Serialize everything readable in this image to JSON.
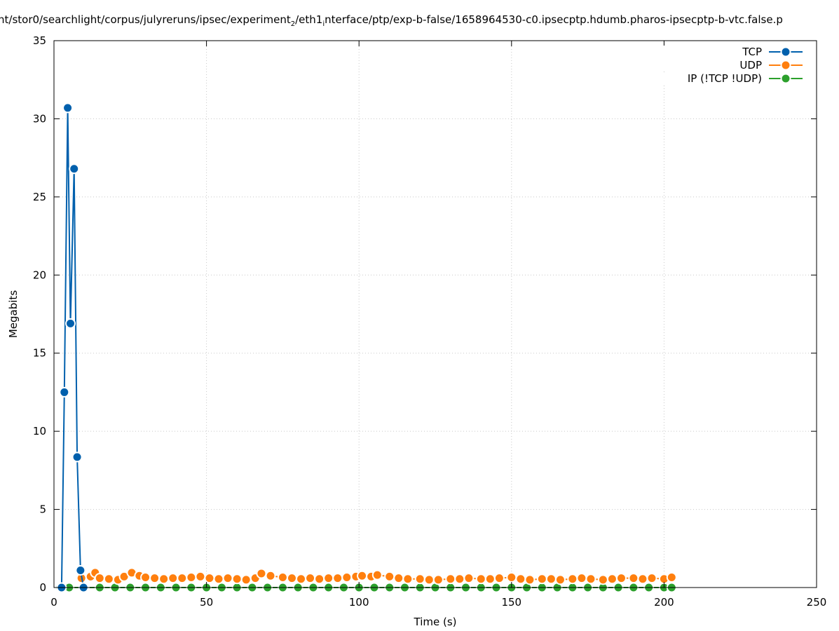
{
  "chart_data": {
    "type": "line",
    "title_parts": [
      "nt/stor0/searchlight/corpus/julyreruns/ipsec/experiment",
      "2",
      "/eth1",
      "i",
      "nterface/ptp/exp-b-false/1658964530-c0.ipsecptp.hdumb.pharos-ipsecptp-b-vtc.false.p"
    ],
    "xlabel": "Time (s)",
    "ylabel": "Megabits",
    "xlim": [
      0,
      250
    ],
    "ylim": [
      0,
      35
    ],
    "xticks": [
      "0",
      "50",
      "100",
      "150",
      "200",
      "250"
    ],
    "yticks": [
      "0",
      "5",
      "10",
      "15",
      "20",
      "25",
      "30",
      "35"
    ],
    "grid": true,
    "legend_position": "top-right",
    "series": [
      {
        "name": "TCP",
        "color": "#0060ad",
        "x": [
          2.5,
          3.4,
          4.5,
          5.4,
          6.6,
          7.6,
          8.7,
          9.7
        ],
        "y": [
          0,
          12.5,
          30.7,
          16.9,
          26.8,
          8.35,
          1.1,
          0
        ]
      },
      {
        "name": "UDP",
        "color": "#ff7f0e",
        "x": [
          9,
          12,
          13.5,
          15,
          18,
          21,
          23,
          25.5,
          28,
          30,
          33,
          36,
          39,
          42,
          45,
          48,
          51,
          54,
          57,
          60,
          63,
          66,
          68,
          71,
          75,
          78,
          81,
          84,
          87,
          90,
          93,
          96,
          99,
          101,
          104,
          106,
          110,
          113,
          116,
          120,
          123,
          126,
          130,
          133,
          136,
          140,
          143,
          146,
          150,
          153,
          156,
          160,
          163,
          166,
          170,
          173,
          176,
          180,
          183,
          186,
          190,
          193,
          196,
          200,
          202.5
        ],
        "y": [
          0.6,
          0.7,
          0.95,
          0.6,
          0.55,
          0.5,
          0.7,
          0.95,
          0.75,
          0.65,
          0.6,
          0.55,
          0.6,
          0.6,
          0.65,
          0.7,
          0.6,
          0.55,
          0.6,
          0.55,
          0.5,
          0.6,
          0.9,
          0.75,
          0.65,
          0.6,
          0.55,
          0.6,
          0.55,
          0.6,
          0.6,
          0.65,
          0.7,
          0.75,
          0.7,
          0.8,
          0.7,
          0.6,
          0.55,
          0.55,
          0.5,
          0.5,
          0.55,
          0.55,
          0.6,
          0.55,
          0.55,
          0.6,
          0.65,
          0.55,
          0.5,
          0.55,
          0.55,
          0.5,
          0.55,
          0.6,
          0.55,
          0.5,
          0.55,
          0.6,
          0.6,
          0.55,
          0.6,
          0.55,
          0.65
        ]
      },
      {
        "name": "IP (!TCP  !UDP)",
        "color": "#2ca02c",
        "x": [
          2,
          5,
          10,
          15,
          20,
          25,
          30,
          35,
          40,
          45,
          50,
          55,
          60,
          65,
          70,
          75,
          80,
          85,
          90,
          95,
          100,
          105,
          110,
          115,
          120,
          125,
          130,
          135,
          140,
          145,
          150,
          155,
          160,
          165,
          170,
          175,
          180,
          185,
          190,
          195,
          200,
          202.5
        ],
        "y": [
          0,
          0,
          0,
          0,
          0,
          0,
          0,
          0,
          0,
          0,
          0,
          0,
          0,
          0,
          0,
          0,
          0,
          0,
          0,
          0,
          0,
          0,
          0,
          0,
          0,
          0,
          0,
          0,
          0,
          0,
          0,
          0,
          0,
          0,
          0,
          0,
          0,
          0,
          0,
          0,
          0,
          0
        ]
      }
    ]
  }
}
